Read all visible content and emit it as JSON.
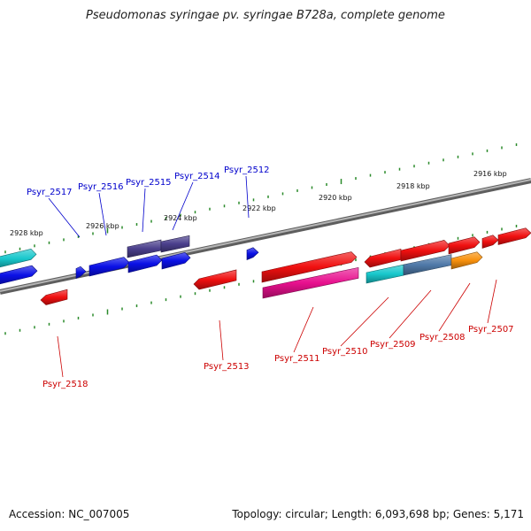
{
  "title": "Pseudomonas syringae pv. syringae B728a, complete genome",
  "footer": {
    "accession": "Accession: NC_007005",
    "topology": "Topology: circular; Length: 6,093,698 bp; Genes: 5,171"
  },
  "colors": {
    "backbone": "#8a8a8a",
    "tick": "#2a8a2a",
    "forward_label": "#0000cc",
    "reverse_label": "#cc0000",
    "blue": "#0a10e6",
    "red": "#f01010",
    "cyan": "#18c8cc",
    "purple": "#4a3f8c",
    "magenta": "#e8108e",
    "steelblue": "#4f79a8",
    "orange": "#f8900c"
  },
  "scale_labels": [
    "2928 kbp",
    "2926 kbp",
    "2924 kbp",
    "2922 kbp",
    "2920 kbp",
    "2918 kbp",
    "2916 kbp"
  ],
  "forward_labels": [
    "Psyr_2517",
    "Psyr_2516",
    "Psyr_2515",
    "Psyr_2514",
    "Psyr_2512"
  ],
  "reverse_labels": [
    "Psyr_2518",
    "Psyr_2513",
    "Psyr_2511",
    "Psyr_2510",
    "Psyr_2509",
    "Psyr_2508",
    "Psyr_2507"
  ]
}
